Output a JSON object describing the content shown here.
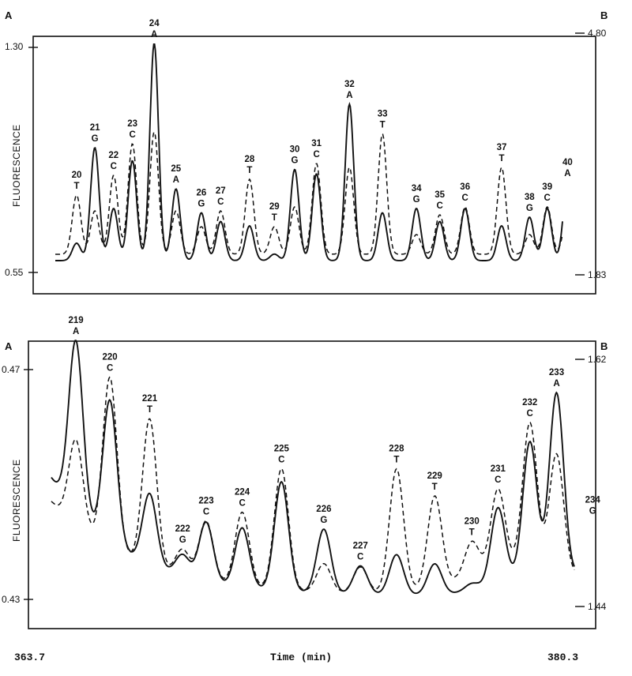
{
  "chart_data": [
    {
      "type": "line",
      "left_axis": {
        "label": "A",
        "ticks": [
          "1.30",
          "0.55"
        ],
        "range": [
          0.55,
          1.3
        ]
      },
      "right_axis": {
        "label": "B",
        "ticks": [
          "4.80",
          "1.83"
        ],
        "range": [
          1.83,
          4.8
        ]
      },
      "ylabel": "FLUORESCENCE",
      "series_styles": {
        "A": "solid",
        "B": "dashed"
      },
      "peaks": [
        {
          "n": "20",
          "base": "T",
          "t": 0.042,
          "a": 0.08,
          "b": 0.3
        },
        {
          "n": "21",
          "base": "G",
          "t": 0.078,
          "a": 0.52,
          "b": 0.22
        },
        {
          "n": "22",
          "base": "C",
          "t": 0.115,
          "a": 0.24,
          "b": 0.4
        },
        {
          "n": "23",
          "base": "C",
          "t": 0.152,
          "a": 0.46,
          "b": 0.56
        },
        {
          "n": "24",
          "base": "A",
          "t": 0.195,
          "a": 1.0,
          "b": 0.62
        },
        {
          "n": "25",
          "base": "A",
          "t": 0.238,
          "a": 0.33,
          "b": 0.22
        },
        {
          "n": "26",
          "base": "G",
          "t": 0.288,
          "a": 0.22,
          "b": 0.14
        },
        {
          "n": "27",
          "base": "C",
          "t": 0.326,
          "a": 0.18,
          "b": 0.22
        },
        {
          "n": "28",
          "base": "T",
          "t": 0.383,
          "a": 0.16,
          "b": 0.38
        },
        {
          "n": "29",
          "base": "T",
          "t": 0.432,
          "a": 0.03,
          "b": 0.14
        },
        {
          "n": "30",
          "base": "G",
          "t": 0.472,
          "a": 0.42,
          "b": 0.24
        },
        {
          "n": "31",
          "base": "C",
          "t": 0.515,
          "a": 0.4,
          "b": 0.46
        },
        {
          "n": "32",
          "base": "A",
          "t": 0.58,
          "a": 0.72,
          "b": 0.44
        },
        {
          "n": "33",
          "base": "T",
          "t": 0.645,
          "a": 0.22,
          "b": 0.61
        },
        {
          "n": "34",
          "base": "G",
          "t": 0.712,
          "a": 0.24,
          "b": 0.1
        },
        {
          "n": "35",
          "base": "C",
          "t": 0.758,
          "a": 0.18,
          "b": 0.2
        },
        {
          "n": "36",
          "base": "C",
          "t": 0.808,
          "a": 0.24,
          "b": 0.24
        },
        {
          "n": "37",
          "base": "T",
          "t": 0.88,
          "a": 0.16,
          "b": 0.44
        },
        {
          "n": "38",
          "base": "G",
          "t": 0.935,
          "a": 0.2,
          "b": 0.1
        },
        {
          "n": "39",
          "base": "C",
          "t": 0.97,
          "a": 0.24,
          "b": 0.24
        },
        {
          "n": "40",
          "base": "A",
          "t": 1.01,
          "a": 0.36,
          "b": 0.2
        }
      ]
    },
    {
      "type": "line",
      "left_axis": {
        "label": "A",
        "ticks": [
          "0.47",
          "0.43"
        ],
        "range": [
          0.43,
          0.47
        ]
      },
      "right_axis": {
        "label": "B",
        "ticks": [
          "1.62",
          "1.44"
        ],
        "range": [
          1.44,
          1.62
        ]
      },
      "ylabel": "FLUORESCENCE",
      "xlabel": "Time (min)",
      "x_range_labels": [
        "363.7",
        "380.3"
      ],
      "series_styles": {
        "A": "solid",
        "B": "dashed"
      },
      "peaks": [
        {
          "n": "219",
          "base": "A",
          "t": 0.047,
          "a": 0.72,
          "b": 0.36
        },
        {
          "n": "220",
          "base": "C",
          "t": 0.112,
          "a": 0.6,
          "b": 0.72
        },
        {
          "n": "221",
          "base": "T",
          "t": 0.188,
          "a": 0.3,
          "b": 0.62
        },
        {
          "n": "222",
          "base": "G",
          "t": 0.251,
          "a": 0.09,
          "b": 0.11
        },
        {
          "n": "223",
          "base": "C",
          "t": 0.296,
          "a": 0.25,
          "b": 0.25
        },
        {
          "n": "224",
          "base": "C",
          "t": 0.365,
          "a": 0.25,
          "b": 0.31
        },
        {
          "n": "225",
          "base": "C",
          "t": 0.44,
          "a": 0.46,
          "b": 0.51
        },
        {
          "n": "226",
          "base": "G",
          "t": 0.521,
          "a": 0.27,
          "b": 0.12
        },
        {
          "n": "227",
          "base": "C",
          "t": 0.591,
          "a": 0.12,
          "b": 0.11
        },
        {
          "n": "228",
          "base": "T",
          "t": 0.66,
          "a": 0.17,
          "b": 0.52
        },
        {
          "n": "229",
          "base": "T",
          "t": 0.733,
          "a": 0.13,
          "b": 0.38
        },
        {
          "n": "230",
          "base": "T",
          "t": 0.804,
          "a": 0.03,
          "b": 0.14
        },
        {
          "n": "231",
          "base": "C",
          "t": 0.854,
          "a": 0.32,
          "b": 0.33
        },
        {
          "n": "232",
          "base": "C",
          "t": 0.915,
          "a": 0.56,
          "b": 0.6
        },
        {
          "n": "233",
          "base": "A",
          "t": 0.966,
          "a": 0.76,
          "b": 0.49
        },
        {
          "n": "234",
          "base": "G",
          "t": 1.035,
          "a": 0.26,
          "b": 0.12
        }
      ]
    }
  ]
}
